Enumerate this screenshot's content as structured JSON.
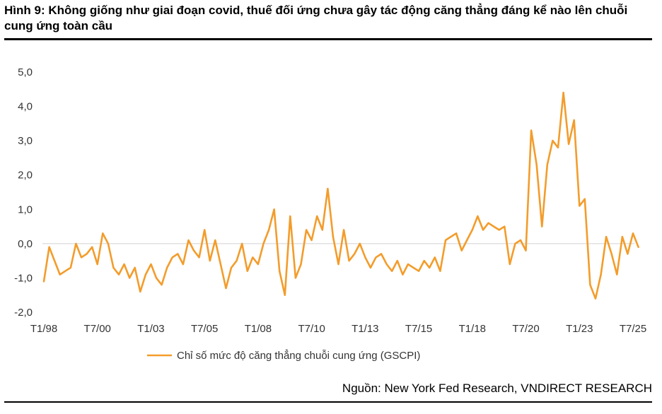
{
  "title": "Hình 9: Không giống như giai đoạn covid, thuế đối ứng chưa gây tác động căng thẳng đáng kể nào lên chuỗi cung ứng toàn cầu",
  "source": "Nguồn: New York Fed Research, VNDIRECT RESEARCH",
  "colors": {
    "series": "#F39C2B",
    "zero_line": "#d0d0d0",
    "text": "#333333",
    "rule": "#000000"
  },
  "chart_data": {
    "type": "line",
    "title": "",
    "xlabel": "",
    "ylabel": "",
    "ylim": [
      -2.0,
      5.0
    ],
    "y_ticks": [
      "5,0",
      "4,0",
      "3,0",
      "2,0",
      "1,0",
      "0,0",
      "-1,0",
      "-2,0"
    ],
    "y_tick_values": [
      5,
      4,
      3,
      2,
      1,
      0,
      -1,
      -2
    ],
    "x_ticks": [
      "T1/98",
      "T7/00",
      "T1/03",
      "T7/05",
      "T1/08",
      "T7/10",
      "T1/13",
      "T7/15",
      "T1/18",
      "T7/20",
      "T1/23",
      "T7/25"
    ],
    "x_tick_dates": [
      "1998-01",
      "2000-07",
      "2003-01",
      "2005-07",
      "2008-01",
      "2010-07",
      "2013-01",
      "2015-07",
      "2018-01",
      "2020-07",
      "2023-01",
      "2025-07"
    ],
    "grid": false,
    "legend_position": "bottom",
    "series": [
      {
        "name": "Chỉ số mức độ căng thẳng chuỗi cung ứng (GSCPI)",
        "points": [
          [
            "1998-01",
            -1.1
          ],
          [
            "1998-04",
            -0.1
          ],
          [
            "1998-07",
            -0.5
          ],
          [
            "1998-10",
            -0.9
          ],
          [
            "1999-01",
            -0.8
          ],
          [
            "1999-04",
            -0.7
          ],
          [
            "1999-07",
            0.0
          ],
          [
            "1999-10",
            -0.4
          ],
          [
            "2000-01",
            -0.3
          ],
          [
            "2000-04",
            -0.1
          ],
          [
            "2000-07",
            -0.6
          ],
          [
            "2000-10",
            0.3
          ],
          [
            "2001-01",
            0.0
          ],
          [
            "2001-04",
            -0.7
          ],
          [
            "2001-07",
            -0.9
          ],
          [
            "2001-10",
            -0.6
          ],
          [
            "2002-01",
            -1.0
          ],
          [
            "2002-04",
            -0.7
          ],
          [
            "2002-07",
            -1.4
          ],
          [
            "2002-10",
            -0.9
          ],
          [
            "2003-01",
            -0.6
          ],
          [
            "2003-04",
            -1.0
          ],
          [
            "2003-07",
            -1.2
          ],
          [
            "2003-10",
            -0.7
          ],
          [
            "2004-01",
            -0.4
          ],
          [
            "2004-04",
            -0.3
          ],
          [
            "2004-07",
            -0.6
          ],
          [
            "2004-10",
            0.1
          ],
          [
            "2005-01",
            -0.2
          ],
          [
            "2005-04",
            -0.4
          ],
          [
            "2005-07",
            0.4
          ],
          [
            "2005-10",
            -0.5
          ],
          [
            "2006-01",
            0.1
          ],
          [
            "2006-04",
            -0.6
          ],
          [
            "2006-07",
            -1.3
          ],
          [
            "2006-10",
            -0.7
          ],
          [
            "2007-01",
            -0.5
          ],
          [
            "2007-04",
            0.0
          ],
          [
            "2007-07",
            -0.8
          ],
          [
            "2007-10",
            -0.4
          ],
          [
            "2008-01",
            -0.6
          ],
          [
            "2008-04",
            0.0
          ],
          [
            "2008-07",
            0.4
          ],
          [
            "2008-10",
            1.0
          ],
          [
            "2009-01",
            -0.8
          ],
          [
            "2009-04",
            -1.5
          ],
          [
            "2009-07",
            0.8
          ],
          [
            "2009-10",
            -1.0
          ],
          [
            "2010-01",
            -0.6
          ],
          [
            "2010-04",
            0.4
          ],
          [
            "2010-07",
            0.1
          ],
          [
            "2010-10",
            0.8
          ],
          [
            "2011-01",
            0.4
          ],
          [
            "2011-04",
            1.6
          ],
          [
            "2011-07",
            0.2
          ],
          [
            "2011-10",
            -0.6
          ],
          [
            "2012-01",
            0.4
          ],
          [
            "2012-04",
            -0.5
          ],
          [
            "2012-07",
            -0.3
          ],
          [
            "2012-10",
            0.0
          ],
          [
            "2013-01",
            -0.4
          ],
          [
            "2013-04",
            -0.7
          ],
          [
            "2013-07",
            -0.4
          ],
          [
            "2013-10",
            -0.3
          ],
          [
            "2014-01",
            -0.6
          ],
          [
            "2014-04",
            -0.8
          ],
          [
            "2014-07",
            -0.5
          ],
          [
            "2014-10",
            -0.9
          ],
          [
            "2015-01",
            -0.6
          ],
          [
            "2015-04",
            -0.7
          ],
          [
            "2015-07",
            -0.8
          ],
          [
            "2015-10",
            -0.5
          ],
          [
            "2016-01",
            -0.7
          ],
          [
            "2016-04",
            -0.4
          ],
          [
            "2016-07",
            -0.8
          ],
          [
            "2016-10",
            0.1
          ],
          [
            "2017-01",
            0.2
          ],
          [
            "2017-04",
            0.3
          ],
          [
            "2017-07",
            -0.2
          ],
          [
            "2017-10",
            0.1
          ],
          [
            "2018-01",
            0.4
          ],
          [
            "2018-04",
            0.8
          ],
          [
            "2018-07",
            0.4
          ],
          [
            "2018-10",
            0.6
          ],
          [
            "2019-01",
            0.5
          ],
          [
            "2019-04",
            0.4
          ],
          [
            "2019-07",
            0.5
          ],
          [
            "2019-10",
            -0.6
          ],
          [
            "2020-01",
            0.0
          ],
          [
            "2020-04",
            0.1
          ],
          [
            "2020-07",
            -0.2
          ],
          [
            "2020-10",
            3.3
          ],
          [
            "2021-01",
            2.3
          ],
          [
            "2021-04",
            0.5
          ],
          [
            "2021-07",
            2.3
          ],
          [
            "2021-10",
            3.0
          ],
          [
            "2022-01",
            2.8
          ],
          [
            "2022-04",
            4.4
          ],
          [
            "2022-07",
            2.9
          ],
          [
            "2022-10",
            3.6
          ],
          [
            "2023-01",
            1.1
          ],
          [
            "2023-04",
            1.3
          ],
          [
            "2023-07",
            -1.2
          ],
          [
            "2023-10",
            -1.6
          ],
          [
            "2024-01",
            -0.9
          ],
          [
            "2024-04",
            0.2
          ],
          [
            "2024-07",
            -0.3
          ],
          [
            "2024-10",
            -0.9
          ],
          [
            "2025-01",
            0.2
          ],
          [
            "2025-04",
            -0.3
          ],
          [
            "2025-07",
            0.3
          ],
          [
            "2025-10",
            -0.1
          ]
        ]
      }
    ]
  }
}
